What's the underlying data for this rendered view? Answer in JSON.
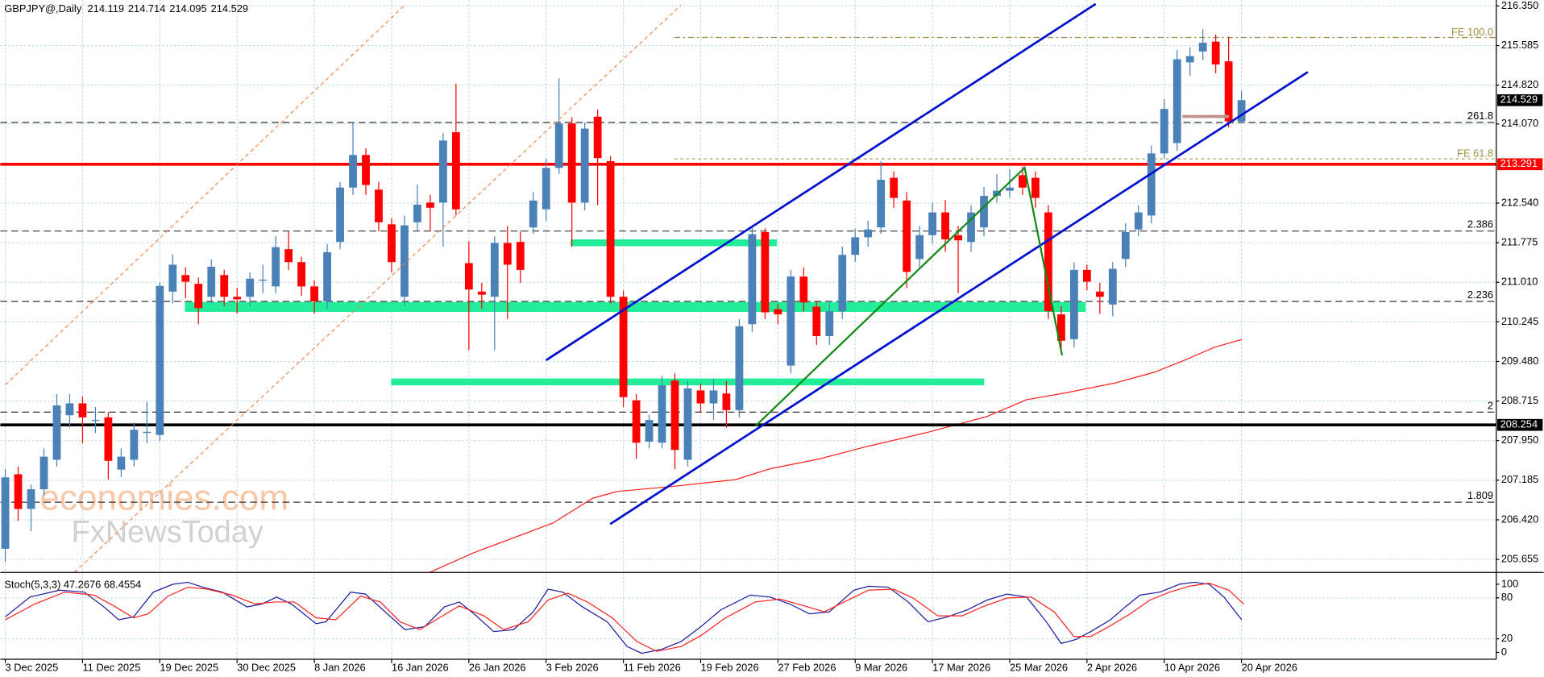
{
  "chart_data": {
    "type": "candlestick",
    "title": "GBPJPY@,Daily",
    "watermark": [
      "economies.com",
      "FxNewsToday"
    ],
    "categories": [
      "3 Dec 2025",
      null,
      null,
      null,
      null,
      null,
      "11 Dec 2025",
      null,
      null,
      null,
      null,
      null,
      "19 Dec 2025",
      null,
      null,
      null,
      null,
      null,
      "30 Dec 2025",
      null,
      null,
      null,
      null,
      null,
      "8 Jan 2026",
      null,
      null,
      null,
      null,
      null,
      "16 Jan 2026",
      null,
      null,
      null,
      null,
      null,
      "26 Jan 2026",
      null,
      null,
      null,
      null,
      null,
      "3 Feb 2026",
      null,
      null,
      null,
      null,
      null,
      "11 Feb 2026",
      null,
      null,
      null,
      null,
      null,
      "19 Feb 2026",
      null,
      null,
      null,
      null,
      null,
      "27 Feb 2026",
      null,
      null,
      null,
      null,
      null,
      "9 Mar 2026",
      null,
      null,
      null,
      null,
      null,
      "17 Mar 2026",
      null,
      null,
      null,
      null,
      null,
      "25 Mar 2026",
      null,
      null,
      null,
      null,
      null,
      "2 Apr 2026",
      null,
      null,
      null,
      null,
      null,
      "10 Apr 2026",
      null,
      null,
      null,
      null,
      null,
      "20 Apr 2026"
    ],
    "open": [
      205.86,
      207.3,
      206.63,
      207.01,
      207.58,
      208.44,
      208.67,
      208.35,
      208.4,
      207.39,
      207.58,
      208.1,
      208.06,
      210.83,
      211.15,
      210.98,
      210.73,
      211.15,
      210.73,
      210.73,
      211.06,
      210.93,
      211.65,
      211.4,
      210.93,
      210.64,
      211.79,
      212.84,
      213.47,
      212.8,
      212.13,
      210.73,
      212.17,
      212.55,
      212.55,
      213.91,
      211.38,
      210.83,
      210.73,
      211.77,
      211.79,
      212.07,
      212.42,
      213.22,
      214.08,
      212.55,
      214.21,
      213.35,
      210.73,
      208.73,
      207.93,
      207.91,
      209.11,
      207.58,
      208.92,
      208.67,
      208.86,
      208.54,
      210.2,
      211.98,
      210.49,
      209.4,
      211.12,
      210.54,
      209.97,
      210.45,
      211.54,
      211.88,
      212.07,
      213.03,
      212.59,
      211.46,
      211.92,
      212.36,
      211.92,
      211.79,
      212.07,
      212.68,
      212.78,
      213.08,
      213.03,
      212.36,
      210.39,
      209.91,
      211.25,
      210.83,
      210.58,
      211.46,
      212.03,
      212.3,
      213.5,
      213.7,
      215.26,
      215.47,
      215.66,
      215.28,
      214.119
    ],
    "high": [
      207.4,
      207.45,
      207.1,
      207.8,
      208.85,
      208.85,
      208.8,
      208.6,
      208.5,
      207.8,
      208.3,
      208.7,
      211.0,
      211.55,
      211.3,
      211.1,
      211.45,
      211.25,
      210.9,
      211.2,
      211.35,
      211.9,
      212.0,
      211.5,
      211.05,
      211.75,
      212.95,
      214.1,
      213.6,
      212.95,
      212.25,
      212.3,
      212.9,
      212.7,
      213.9,
      214.85,
      211.8,
      211.0,
      211.9,
      212.1,
      212.0,
      212.75,
      213.4,
      214.95,
      214.2,
      214.1,
      214.35,
      213.45,
      210.85,
      208.85,
      208.45,
      209.2,
      209.25,
      209.1,
      209.05,
      209.15,
      209.1,
      210.3,
      212.1,
      212.05,
      210.6,
      211.25,
      211.3,
      210.65,
      210.6,
      211.7,
      212.05,
      212.2,
      213.35,
      213.15,
      212.75,
      212.1,
      212.55,
      212.6,
      212.1,
      212.5,
      212.85,
      213.1,
      213.2,
      213.25,
      213.15,
      212.5,
      210.55,
      211.4,
      211.35,
      211.0,
      211.4,
      212.15,
      212.5,
      213.65,
      214.55,
      215.5,
      215.55,
      215.9,
      215.8,
      215.75,
      214.714
    ],
    "low": [
      205.6,
      206.4,
      206.2,
      206.9,
      207.45,
      208.2,
      207.9,
      208.1,
      207.2,
      207.25,
      207.45,
      207.9,
      207.95,
      210.6,
      210.7,
      210.2,
      210.6,
      210.55,
      210.4,
      210.55,
      210.8,
      210.8,
      211.25,
      210.75,
      210.4,
      210.5,
      211.65,
      212.7,
      212.7,
      212.0,
      211.2,
      210.55,
      212.0,
      212.0,
      211.7,
      212.3,
      209.7,
      210.5,
      209.7,
      210.3,
      211.0,
      211.95,
      212.2,
      213.1,
      211.7,
      212.4,
      212.5,
      210.6,
      208.6,
      207.6,
      207.8,
      207.8,
      207.4,
      207.45,
      208.5,
      208.35,
      208.2,
      208.4,
      210.05,
      210.3,
      210.2,
      209.25,
      210.45,
      209.8,
      209.8,
      210.3,
      211.4,
      211.7,
      211.95,
      212.45,
      210.9,
      211.3,
      211.75,
      211.6,
      210.8,
      211.6,
      211.9,
      212.55,
      212.65,
      212.7,
      212.45,
      210.3,
      209.7,
      209.75,
      210.85,
      210.4,
      210.35,
      211.3,
      211.9,
      212.15,
      213.4,
      213.55,
      215.0,
      215.3,
      215.05,
      214.0,
      214.095
    ],
    "close": [
      207.24,
      206.63,
      207.01,
      207.64,
      208.63,
      208.67,
      208.4,
      208.35,
      207.56,
      207.64,
      208.16,
      208.12,
      210.94,
      211.35,
      211.02,
      210.51,
      211.31,
      210.73,
      210.68,
      211.08,
      211.06,
      211.69,
      211.4,
      210.93,
      210.64,
      211.59,
      212.84,
      213.47,
      212.89,
      212.17,
      211.4,
      212.11,
      212.51,
      212.45,
      213.75,
      212.42,
      210.87,
      210.77,
      211.77,
      211.35,
      211.25,
      212.59,
      213.22,
      214.08,
      212.55,
      213.98,
      213.41,
      210.73,
      208.79,
      207.91,
      208.35,
      209.02,
      207.77,
      208.96,
      208.67,
      208.92,
      208.54,
      210.16,
      211.94,
      210.43,
      210.39,
      211.12,
      210.62,
      209.97,
      210.45,
      211.54,
      211.88,
      212.03,
      212.99,
      212.64,
      211.21,
      211.92,
      212.36,
      211.84,
      211.82,
      212.36,
      212.68,
      212.78,
      212.84,
      212.84,
      212.64,
      210.45,
      209.88,
      211.25,
      211.02,
      210.73,
      211.27,
      211.98,
      212.36,
      213.5,
      214.36,
      215.32,
      215.38,
      215.64,
      215.22,
      214.12,
      214.529
    ],
    "up_color": "#4a82b8",
    "down_color": "#ff0000",
    "ylim": [
      205.48,
      216.465
    ],
    "yticks": [
      {
        "value": 216.35,
        "label": "216.350"
      },
      215.585,
      {
        "value": 214.82,
        "label": "214.820"
      },
      {
        "value": 214.07,
        "label": "214.070"
      },
      {
        "value": 212.54,
        "label": "212.540"
      },
      211.775,
      {
        "value": 211.01,
        "label": "211.010"
      },
      210.245,
      {
        "value": 209.48,
        "label": "209.480"
      },
      208.715,
      {
        "value": 207.95,
        "label": "207.950"
      },
      207.185,
      {
        "value": 206.42,
        "label": "206.420"
      },
      205.655
    ],
    "grid": true,
    "price_levels": [
      {
        "value": 213.291,
        "color": "#ff0000"
      },
      {
        "value": 208.254,
        "color": "#000000"
      }
    ],
    "fib_levels": [
      {
        "label": "261.8",
        "value": 214.1
      },
      {
        "label": "2.386",
        "value": 212.0
      },
      {
        "label": "2.236",
        "value": 210.64
      },
      {
        "label": "2",
        "value": 208.5
      },
      {
        "label": "1.809",
        "value": 206.76
      }
    ],
    "fe_levels": [
      {
        "label": "FE 100.0",
        "value": 215.74
      },
      {
        "label": "FE 61.8",
        "value": 213.39
      }
    ],
    "stoch": {
      "title": "Stoch(5,3,3) 47.2676 68.4554",
      "ylim": [
        -10,
        108.7
      ],
      "yticks": [
        0,
        20,
        80,
        100
      ]
    }
  }
}
